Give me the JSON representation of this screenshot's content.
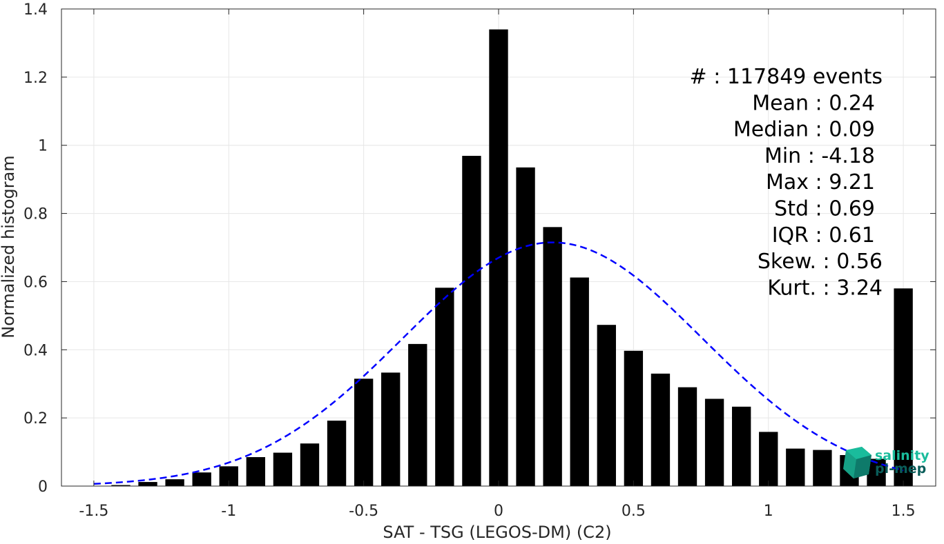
{
  "chart_data": {
    "type": "bar",
    "xlabel": "SAT - TSG (LEGOS-DM) (C2)",
    "ylabel": "Normalized histogram",
    "xlim": [
      -1.62,
      1.62
    ],
    "ylim": [
      0,
      1.4
    ],
    "xticks": [
      -1.5,
      -1,
      -0.5,
      0,
      0.5,
      1,
      1.5
    ],
    "xtick_labels": [
      "-1.5",
      "-1",
      "-0.5",
      "0",
      "0.5",
      "1",
      "1.5"
    ],
    "yticks": [
      0,
      0.2,
      0.4,
      0.6,
      0.8,
      1,
      1.2,
      1.4
    ],
    "ytick_labels": [
      "0",
      "0.2",
      "0.4",
      "0.6",
      "0.8",
      "1",
      "1.2",
      "1.4"
    ],
    "grid": true,
    "bar_width": 0.07,
    "bars": [
      {
        "x": -1.4,
        "y": 0.003
      },
      {
        "x": -1.3,
        "y": 0.012
      },
      {
        "x": -1.2,
        "y": 0.02
      },
      {
        "x": -1.1,
        "y": 0.04
      },
      {
        "x": -1.0,
        "y": 0.058
      },
      {
        "x": -0.9,
        "y": 0.085
      },
      {
        "x": -0.8,
        "y": 0.098
      },
      {
        "x": -0.7,
        "y": 0.125
      },
      {
        "x": -0.6,
        "y": 0.192
      },
      {
        "x": -0.5,
        "y": 0.315
      },
      {
        "x": -0.4,
        "y": 0.333
      },
      {
        "x": -0.3,
        "y": 0.417
      },
      {
        "x": -0.2,
        "y": 0.582
      },
      {
        "x": -0.1,
        "y": 0.969
      },
      {
        "x": 0.0,
        "y": 1.34
      },
      {
        "x": 0.1,
        "y": 0.935
      },
      {
        "x": 0.2,
        "y": 0.76
      },
      {
        "x": 0.3,
        "y": 0.612
      },
      {
        "x": 0.4,
        "y": 0.473
      },
      {
        "x": 0.5,
        "y": 0.397
      },
      {
        "x": 0.6,
        "y": 0.33
      },
      {
        "x": 0.7,
        "y": 0.29
      },
      {
        "x": 0.8,
        "y": 0.256
      },
      {
        "x": 0.9,
        "y": 0.233
      },
      {
        "x": 1.0,
        "y": 0.159
      },
      {
        "x": 1.1,
        "y": 0.11
      },
      {
        "x": 1.2,
        "y": 0.106
      },
      {
        "x": 1.3,
        "y": 0.091
      },
      {
        "x": 1.4,
        "y": 0.08
      },
      {
        "x": 1.5,
        "y": 0.58
      }
    ],
    "bar_color": "#000000",
    "normal_fit": {
      "mean": 0.2,
      "peak": 0.715,
      "std": 0.555,
      "x_start": -1.5,
      "x_end": 1.5,
      "color": "#0000ff",
      "style": "dashed"
    },
    "stats_lines": [
      "#  : 117849 events",
      "Mean : 0.24",
      "Median : 0.09",
      "Min : -4.18",
      "Max : 9.21",
      "Std : 0.69",
      "IQR : 0.61",
      "Skew. : 0.56",
      "Kurt. : 3.24"
    ]
  },
  "logo": {
    "line1": "salinity",
    "line2": "pi-mep",
    "color": "#1abc9c",
    "dark_color": "#0a5d5a"
  }
}
